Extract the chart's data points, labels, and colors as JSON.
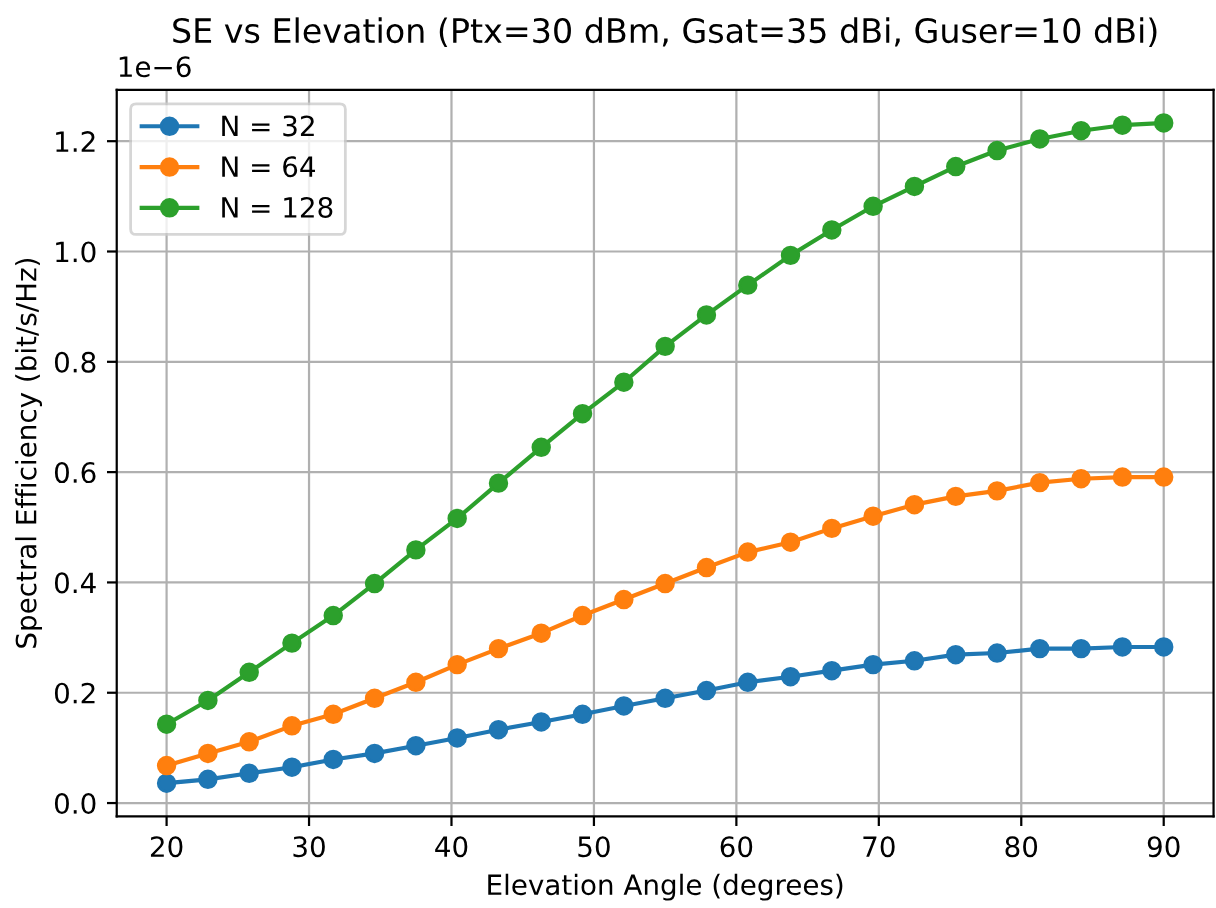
{
  "chart_data": {
    "type": "line",
    "title": "SE vs Elevation (Ptx=30 dBm, Gsat=35 dBi, Guser=10 dBi)",
    "xlabel": "Elevation Angle (degrees)",
    "ylabel": "Spectral Efficiency (bit/s/Hz)",
    "annotations": [
      "1e−6"
    ],
    "x": [
      20,
      22.9,
      25.8,
      28.8,
      31.7,
      34.6,
      37.5,
      40.4,
      43.3,
      46.3,
      49.2,
      52.1,
      55,
      57.9,
      60.8,
      63.8,
      66.7,
      69.6,
      72.5,
      75.4,
      78.3,
      81.3,
      84.2,
      87.1,
      90
    ],
    "series": [
      {
        "name": "N = 32",
        "color": "#1f77b4",
        "values": [
          0.036,
          0.043,
          0.054,
          0.065,
          0.079,
          0.09,
          0.104,
          0.118,
          0.133,
          0.147,
          0.161,
          0.176,
          0.19,
          0.204,
          0.219,
          0.229,
          0.24,
          0.251,
          0.258,
          0.269,
          0.272,
          0.28,
          0.28,
          0.283,
          0.283
        ]
      },
      {
        "name": "N = 64",
        "color": "#ff7f0e",
        "values": [
          0.068,
          0.09,
          0.111,
          0.14,
          0.161,
          0.19,
          0.219,
          0.251,
          0.28,
          0.308,
          0.34,
          0.369,
          0.398,
          0.427,
          0.455,
          0.473,
          0.498,
          0.52,
          0.541,
          0.556,
          0.566,
          0.581,
          0.588,
          0.591,
          0.591
        ]
      },
      {
        "name": "N = 128",
        "color": "#2ca02c",
        "values": [
          0.143,
          0.186,
          0.237,
          0.29,
          0.34,
          0.398,
          0.459,
          0.516,
          0.58,
          0.645,
          0.706,
          0.763,
          0.828,
          0.885,
          0.939,
          0.993,
          1.039,
          1.082,
          1.118,
          1.154,
          1.183,
          1.204,
          1.219,
          1.229,
          1.233
        ]
      }
    ],
    "xlim": [
      16.5,
      93.5
    ],
    "xticks": [
      20,
      30,
      40,
      50,
      60,
      70,
      80,
      90
    ],
    "ylim": [
      -0.024,
      1.293
    ],
    "yticks": [
      {
        "value": 0,
        "label": "0.0"
      },
      0.2,
      0.4,
      0.6,
      0.8,
      {
        "value": 1.0,
        "label": "1.0"
      },
      1.2
    ],
    "grid": true,
    "legend": "top left",
    "marker": "circle",
    "line_style": "solid"
  }
}
